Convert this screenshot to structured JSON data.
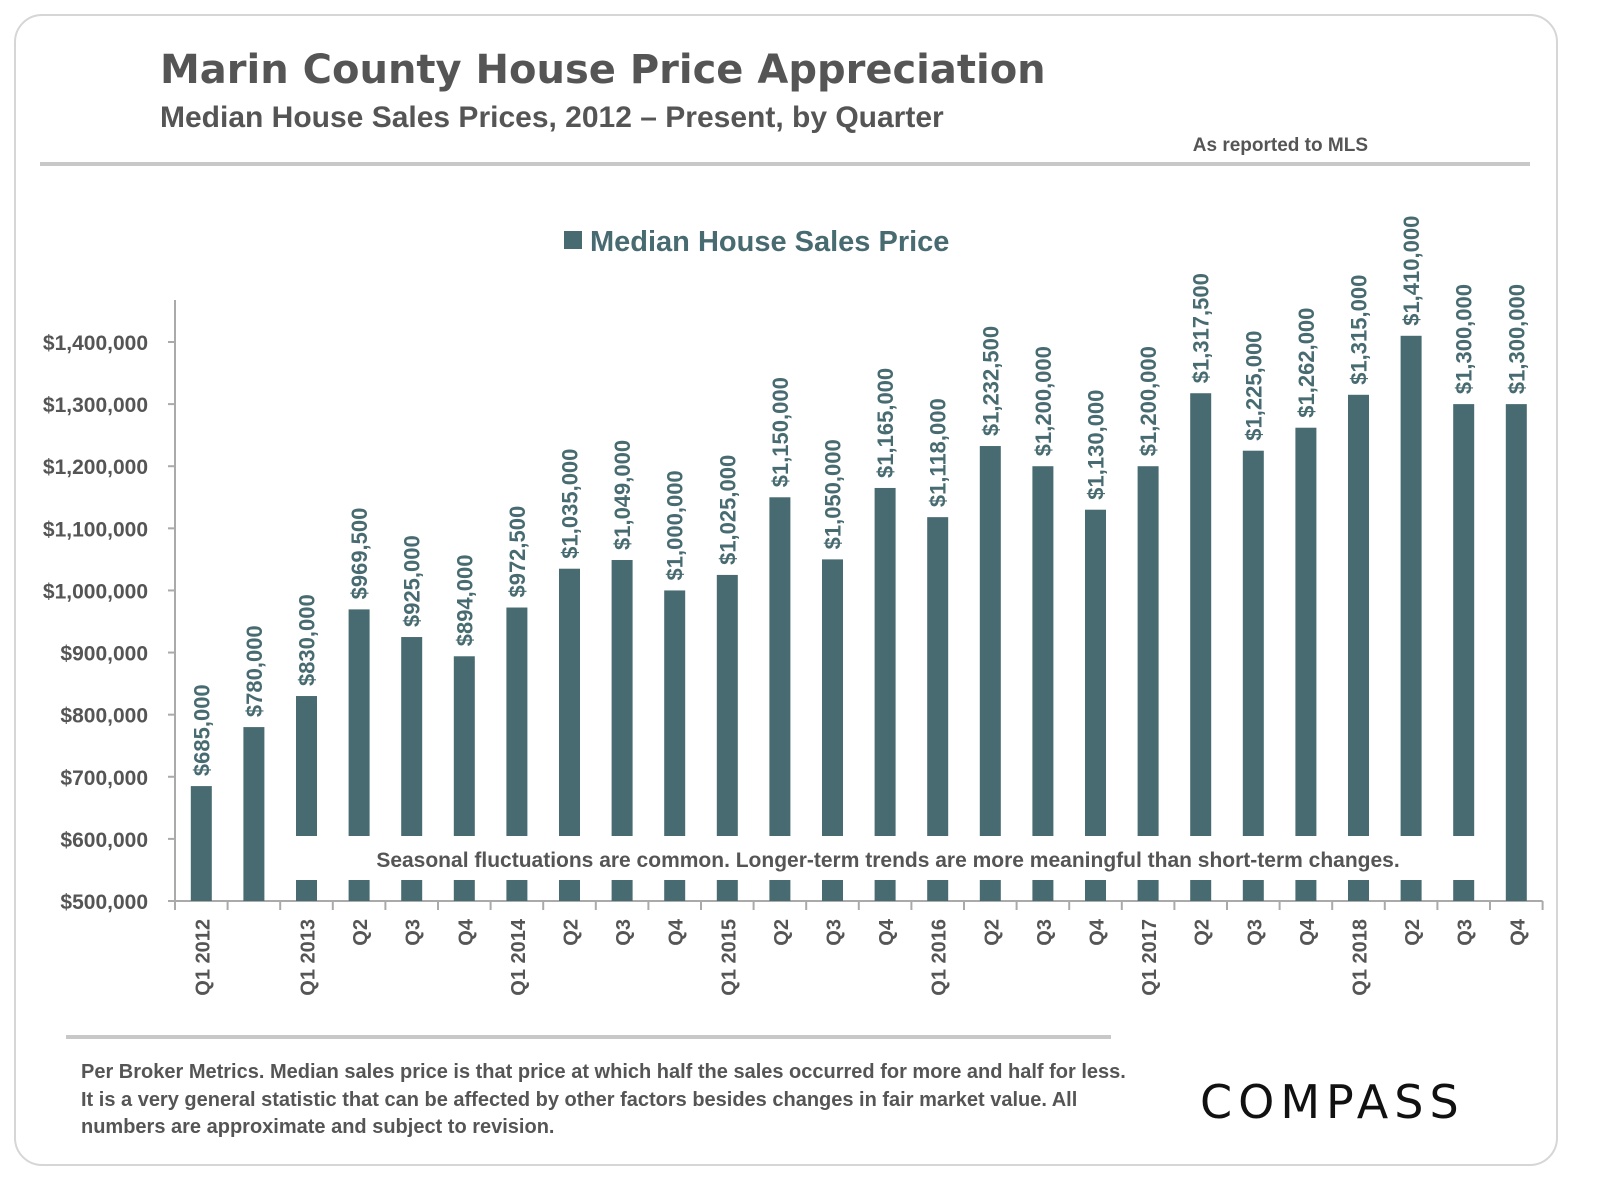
{
  "header": {
    "title": "Marin County House Price Appreciation",
    "subtitle": "Median House Sales Prices, 2012 – Present, by Quarter",
    "source_note": "As reported to MLS"
  },
  "colors": {
    "bar": "#476b70",
    "text": "#555555",
    "rule": "#c8c8c8"
  },
  "chart_data": {
    "type": "bar",
    "title": "Marin County House Price Appreciation",
    "subtitle": "Median House Sales Prices, 2012 – Present, by Quarter",
    "legend": {
      "position": "top",
      "entries": [
        "Median House Sales Price"
      ]
    },
    "categories": [
      "Q1 2012",
      "",
      "Q1 2013",
      "Q2",
      "Q3",
      "Q4",
      "Q1 2014",
      "Q2",
      "Q3",
      "Q4",
      "Q1 2015",
      "Q2",
      "Q3",
      "Q4",
      "Q1 2016",
      "Q2",
      "Q3",
      "Q4",
      "Q1 2017",
      "Q2",
      "Q3",
      "Q4",
      "Q1 2018",
      "Q2",
      "Q3",
      "Q4"
    ],
    "series": [
      {
        "name": "Median House Sales Price",
        "values": [
          685000,
          780000,
          830000,
          969500,
          925000,
          894000,
          972500,
          1035000,
          1049000,
          1000000,
          1025000,
          1150000,
          1050000,
          1165000,
          1118000,
          1232500,
          1200000,
          1130000,
          1200000,
          1317500,
          1225000,
          1262000,
          1315000,
          1410000,
          1300000,
          1300000
        ],
        "data_labels": [
          "$685,000",
          "$780,000",
          "$830,000",
          "$969,500",
          "$925,000",
          "$894,000",
          "$972,500",
          "$1,035,000",
          "$1,049,000",
          "$1,000,000",
          "$1,025,000",
          "$1,150,000",
          "$1,050,000",
          "$1,165,000",
          "$1,118,000",
          "$1,232,500",
          "$1,200,000",
          "$1,130,000",
          "$1,200,000",
          "$1,317,500",
          "$1,225,000",
          "$1,262,000",
          "$1,315,000",
          "$1,410,000",
          "$1,300,000",
          "$1,300,000"
        ]
      }
    ],
    "ylim": [
      500000,
      1400000
    ],
    "yticks": [
      500000,
      600000,
      700000,
      800000,
      900000,
      1000000,
      1100000,
      1200000,
      1300000,
      1400000
    ],
    "ytick_labels": [
      "$500,000",
      "$600,000",
      "$700,000",
      "$800,000",
      "$900,000",
      "$1,000,000",
      "$1,100,000",
      "$1,200,000",
      "$1,300,000",
      "$1,400,000"
    ],
    "grid": false,
    "annotation": "Seasonal fluctuations are common. Longer-term trends are more meaningful than short-term changes."
  },
  "footer": {
    "lines": [
      "Per Broker Metrics. Median sales price is that price at which half the sales occurred for more and half for less.",
      "It is a very general statistic that can be affected by other factors besides changes in fair market value. All",
      "numbers are approximate and subject to revision."
    ],
    "logo": "COMPASS"
  }
}
